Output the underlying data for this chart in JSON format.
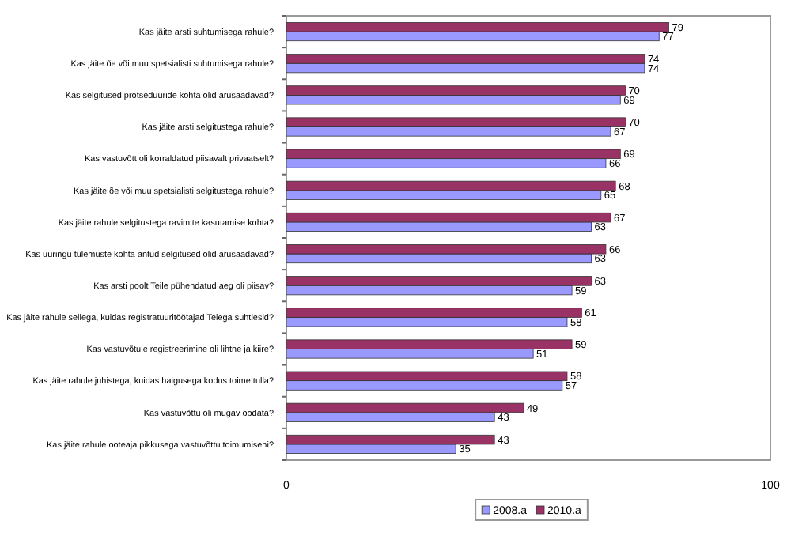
{
  "chart_data": {
    "type": "bar",
    "orientation": "horizontal",
    "categories": [
      "Kas jäite arsti suhtumisega rahule?",
      "Kas jäite õe või muu spetsialisti suhtumisega rahule?",
      "Kas selgitused protseduuride kohta olid arusaadavad?",
      "Kas jäite arsti selgitustega rahule?",
      "Kas vastuvõtt oli korraldatud piisavalt privaatselt?",
      "Kas jäite õe või muu spetsialisti selgitustega rahule?",
      "Kas jäite rahule selgitustega ravimite kasutamise kohta?",
      "Kas uuringu tulemuste kohta antud selgitused olid arusaadavad?",
      "Kas arsti poolt Teile pühendatud aeg oli piisav?",
      "Kas jäite rahule sellega, kuidas registratuuritöötajad Teiega suhtlesid?",
      "Kas vastuvõtule registreerimine oli lihtne ja kiire?",
      "Kas jäite rahule juhistega, kuidas haigusega kodus toime tulla?",
      "Kas vastuvõttu oli mugav oodata?",
      "Kas jäite rahule ooteaja pikkusega vastuvõttu toimumiseni?"
    ],
    "series": [
      {
        "name": "2008.a",
        "color": "#9999ff",
        "values": [
          77,
          74,
          69,
          67,
          66,
          65,
          63,
          63,
          59,
          58,
          51,
          57,
          43,
          35
        ]
      },
      {
        "name": "2010.a",
        "color": "#993366",
        "values": [
          79,
          74,
          70,
          70,
          69,
          68,
          67,
          66,
          63,
          61,
          59,
          58,
          49,
          43
        ]
      }
    ],
    "xlim": [
      0,
      100
    ],
    "xticks": [
      0,
      100
    ],
    "data_labels": true,
    "legend": "bottom",
    "grid": false
  }
}
